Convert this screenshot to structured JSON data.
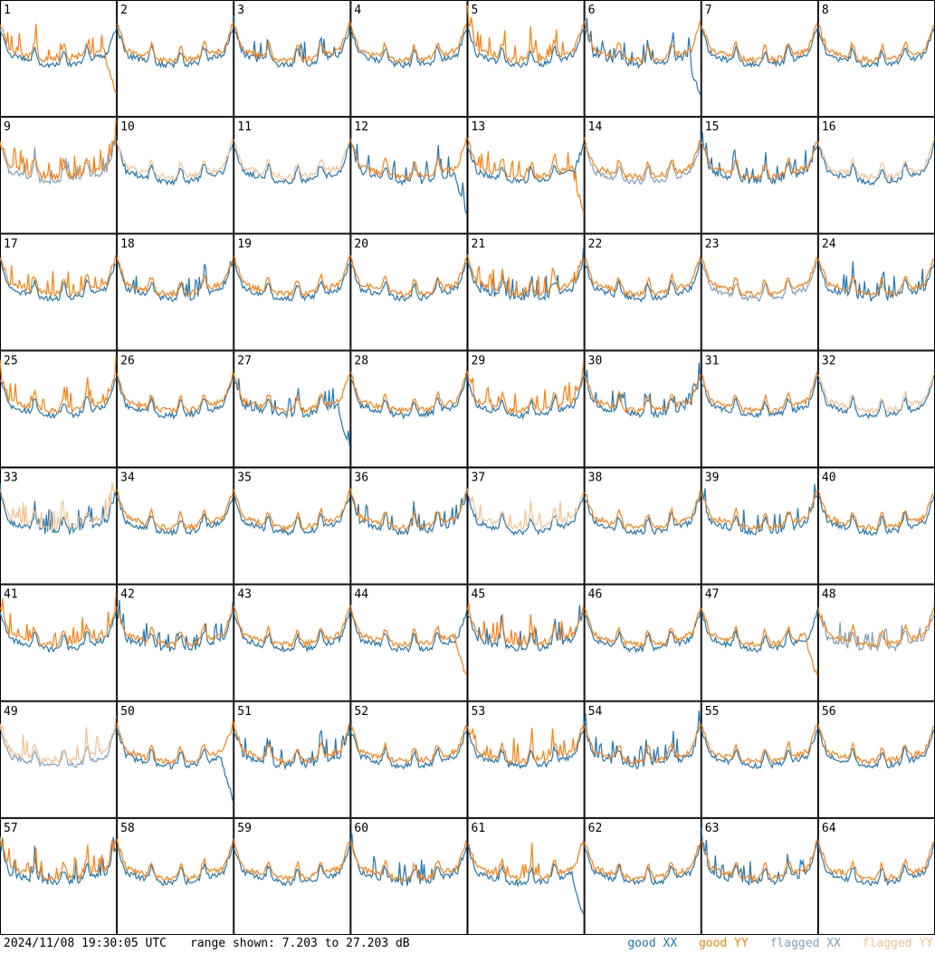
{
  "chart_data": {
    "type": "line",
    "grid": "8x8 small-multiple panels",
    "panels": [
      "1",
      "2",
      "3",
      "4",
      "5",
      "6",
      "7",
      "8",
      "9",
      "10",
      "11",
      "12",
      "13",
      "14",
      "15",
      "16",
      "17",
      "18",
      "19",
      "20",
      "21",
      "22",
      "23",
      "24",
      "25",
      "26",
      "27",
      "28",
      "29",
      "30",
      "31",
      "32",
      "33",
      "34",
      "35",
      "36",
      "37",
      "38",
      "39",
      "40",
      "41",
      "42",
      "43",
      "44",
      "45",
      "46",
      "47",
      "48",
      "49",
      "50",
      "51",
      "52",
      "53",
      "54",
      "55",
      "56",
      "57",
      "58",
      "59",
      "60",
      "61",
      "62",
      "63",
      "64"
    ],
    "series": [
      {
        "name": "good XX",
        "color": "#1f77b4"
      },
      {
        "name": "good YY",
        "color": "#ff7f0e"
      },
      {
        "name": "flagged XX",
        "color": "#7f9fbf"
      },
      {
        "name": "flagged YY",
        "color": "#f5c08f"
      }
    ],
    "flagged_xx_panels": [
      9,
      14,
      23,
      48,
      49
    ],
    "flagged_yy_panels": [
      10,
      11,
      16,
      32,
      33,
      37,
      49
    ],
    "ylim": [
      7.203,
      27.203
    ],
    "yunit": "dB"
  },
  "footer": {
    "timestamp": "2024/11/08 19:30:05 UTC",
    "range_text": "range shown: 7.203 to 27.203 dB"
  },
  "legend": {
    "good_xx": "good XX",
    "good_yy": "good YY",
    "flagged_xx": "flagged XX",
    "flagged_yy": "flagged YY"
  }
}
